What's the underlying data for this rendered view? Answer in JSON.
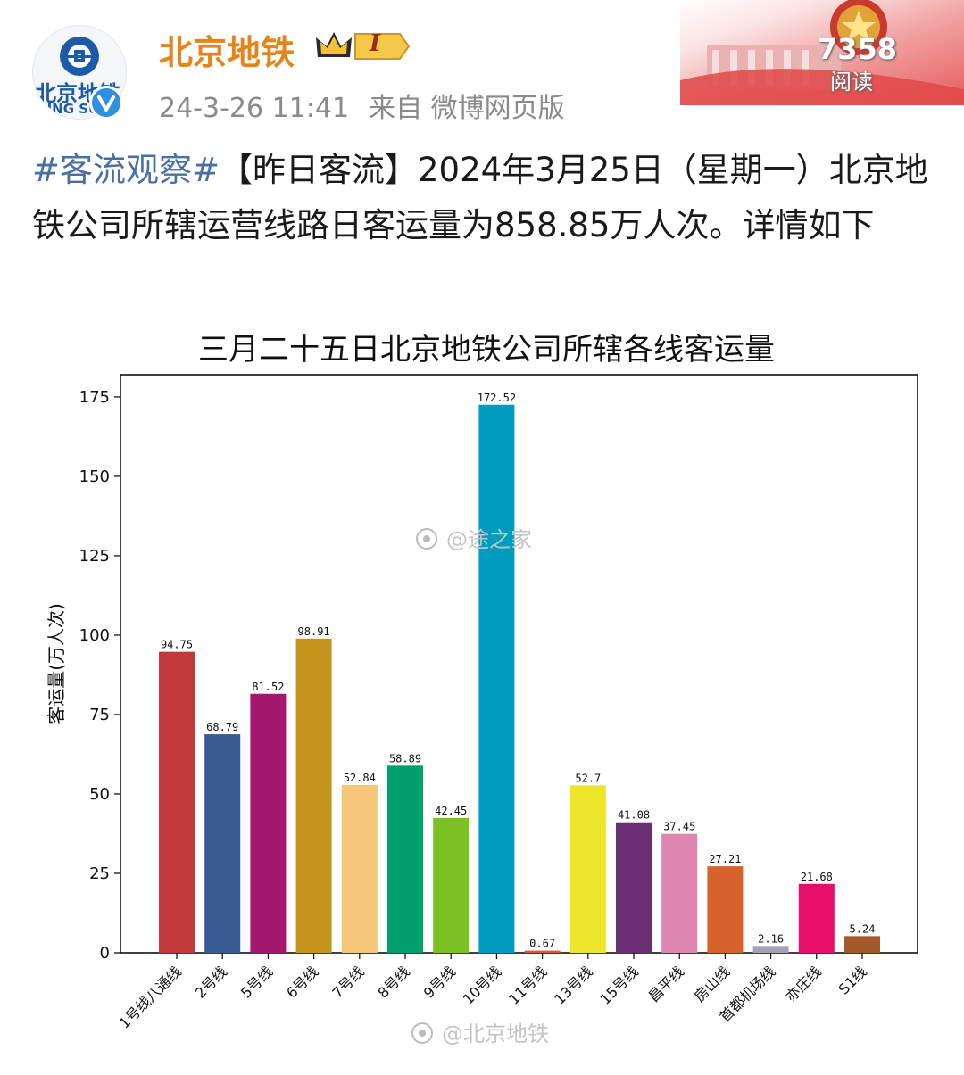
{
  "header": {
    "username": "北京地铁",
    "level_badge": "I",
    "timestamp": "24-3-26 11:41",
    "source": "来自 微博网页版",
    "read_count": "7358",
    "read_label": "阅读",
    "avatar_text": "北京地铁",
    "avatar_subtext": "JING SU"
  },
  "post": {
    "hashtag": "#客流观察#",
    "body": "【昨日客流】2024年3月25日（星期一）北京地铁公司所辖运营线路日客运量为858.85万人次。详情如下"
  },
  "chart_data": {
    "type": "bar",
    "title": "三月二十五日北京地铁公司所辖各线客运量",
    "ylabel": "客运量(万人次)",
    "xlabel": "",
    "ylim": [
      0,
      182
    ],
    "yticks": [
      0,
      25,
      50,
      75,
      100,
      125,
      150,
      175
    ],
    "grid": false,
    "categories": [
      "1号线八通线",
      "2号线",
      "5号线",
      "6号线",
      "7号线",
      "8号线",
      "9号线",
      "10号线",
      "11号线",
      "13号线",
      "15号线",
      "昌平线",
      "房山线",
      "首都机场线",
      "亦庄线",
      "S1线"
    ],
    "values": [
      94.75,
      68.79,
      81.52,
      98.91,
      52.84,
      58.89,
      42.45,
      172.52,
      0.67,
      52.7,
      41.08,
      37.45,
      27.21,
      2.16,
      21.68,
      5.24
    ],
    "value_labels": [
      "94.75",
      "68.79",
      "81.52",
      "98.91",
      "52.84",
      "58.89",
      "42.45",
      "172.52",
      "0.67",
      "52.7",
      "41.08",
      "37.45",
      "27.21",
      "2.16",
      "21.68",
      "5.24"
    ],
    "colors": [
      "#c0393b",
      "#3a5b92",
      "#a3186d",
      "#c4951a",
      "#f5c57a",
      "#009f6b",
      "#7cc122",
      "#009cbf",
      "#d6593a",
      "#ece52a",
      "#6b2d74",
      "#de85b0",
      "#d8622b",
      "#a3a3b8",
      "#e6106b",
      "#a35a2a"
    ],
    "watermarks": [
      "@途之家",
      "@北京地铁"
    ]
  }
}
